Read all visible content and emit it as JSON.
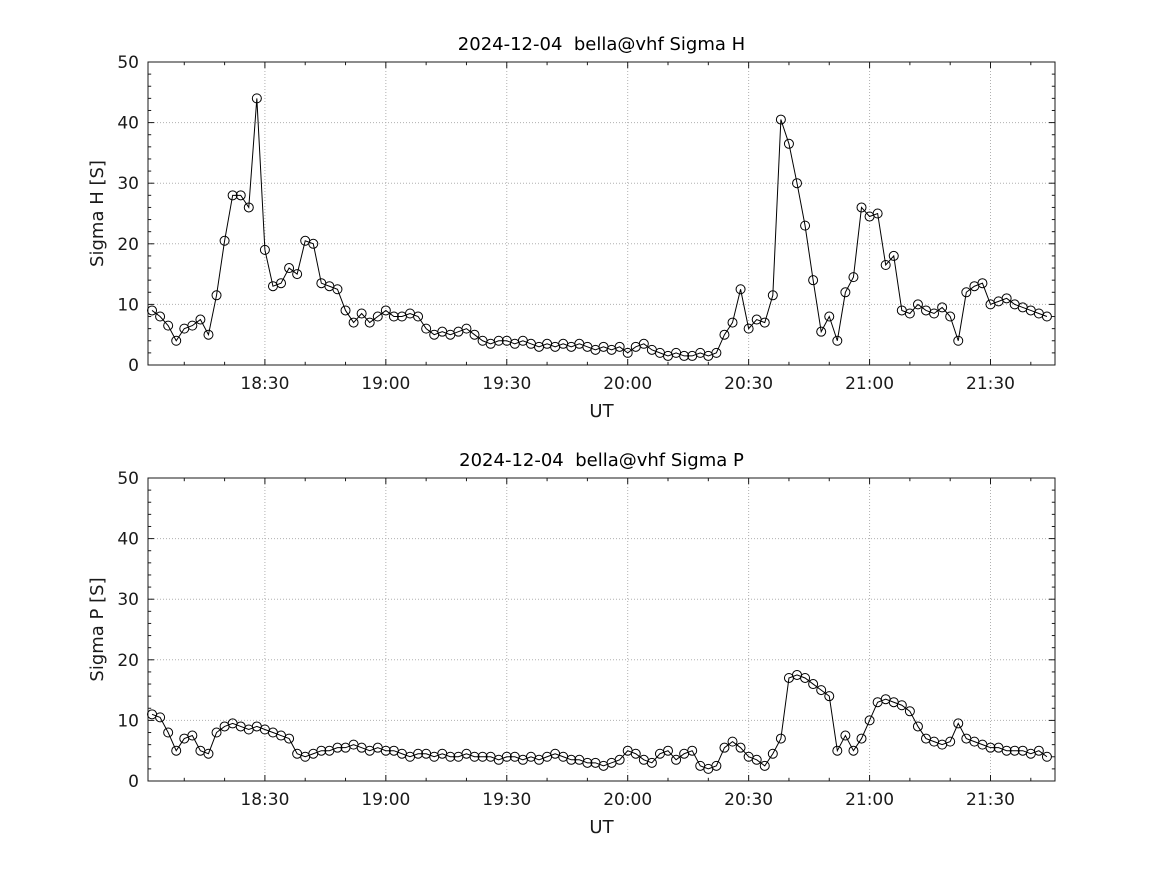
{
  "figure": {
    "background": "#ffffff",
    "axis_color": "#1a1a1a",
    "grid_color": "#b0b0b0",
    "line_color": "#000000",
    "marker_style": "open-circle"
  },
  "chart_data": [
    {
      "type": "line",
      "title": "2024-12-04  bella@vhf Sigma H",
      "xlabel": "UT",
      "ylabel": "Sigma H [S]",
      "grid": true,
      "legend": "none",
      "x_axis": {
        "unit": "minutes after 18:00 UT",
        "lim": [
          1,
          226
        ],
        "major_ticks": [
          {
            "minute": 30,
            "label": "18:30"
          },
          {
            "minute": 60,
            "label": "19:00"
          },
          {
            "minute": 90,
            "label": "19:30"
          },
          {
            "minute": 120,
            "label": "20:00"
          },
          {
            "minute": 150,
            "label": "20:30"
          },
          {
            "minute": 180,
            "label": "21:00"
          },
          {
            "minute": 210,
            "label": "21:30"
          }
        ],
        "minor_tick_step": 10
      },
      "y_axis": {
        "lim": [
          0,
          50
        ],
        "major_ticks": [
          0,
          10,
          20,
          30,
          40,
          50
        ],
        "minor_tick_step": 2
      },
      "series": {
        "name": "Sigma H",
        "x_start_minute": 2,
        "x_step_minutes": 2,
        "values": [
          9,
          8,
          6.5,
          4,
          6,
          6.5,
          7.5,
          5,
          11.5,
          20.5,
          28,
          28,
          26,
          44,
          19,
          13,
          13.5,
          16,
          15,
          20.5,
          20,
          13.5,
          13,
          12.5,
          9,
          7,
          8.5,
          7,
          8,
          9,
          8,
          8,
          8.5,
          8,
          6,
          5,
          5.5,
          5,
          5.5,
          6,
          5,
          4,
          3.5,
          4,
          4,
          3.5,
          4,
          3.5,
          3,
          3.5,
          3,
          3.5,
          3,
          3.5,
          3,
          2.5,
          3,
          2.5,
          3,
          2,
          3,
          3.5,
          2.5,
          2,
          1.5,
          2,
          1.5,
          1.5,
          2,
          1.5,
          2,
          5,
          7,
          12.5,
          6,
          7.5,
          7,
          11.5,
          40.5,
          36.5,
          30,
          23,
          14,
          5.5,
          8,
          4,
          12,
          14.5,
          26,
          24.5,
          25,
          16.5,
          18,
          9,
          8.5,
          10,
          9,
          8.5,
          9.5,
          8,
          4,
          12,
          13,
          13.5,
          10,
          10.5,
          11,
          10,
          9.5,
          9,
          8.5,
          8
        ]
      }
    },
    {
      "type": "line",
      "title": "2024-12-04  bella@vhf Sigma P",
      "xlabel": "UT",
      "ylabel": "Sigma P [S]",
      "grid": true,
      "legend": "none",
      "x_axis": {
        "unit": "minutes after 18:00 UT",
        "lim": [
          1,
          226
        ],
        "major_ticks": [
          {
            "minute": 30,
            "label": "18:30"
          },
          {
            "minute": 60,
            "label": "19:00"
          },
          {
            "minute": 90,
            "label": "19:30"
          },
          {
            "minute": 120,
            "label": "20:00"
          },
          {
            "minute": 150,
            "label": "20:30"
          },
          {
            "minute": 180,
            "label": "21:00"
          },
          {
            "minute": 210,
            "label": "21:30"
          }
        ],
        "minor_tick_step": 10
      },
      "y_axis": {
        "lim": [
          0,
          50
        ],
        "major_ticks": [
          0,
          10,
          20,
          30,
          40,
          50
        ],
        "minor_tick_step": 2
      },
      "series": {
        "name": "Sigma P",
        "x_start_minute": 2,
        "x_step_minutes": 2,
        "values": [
          11,
          10.5,
          8,
          5,
          7,
          7.5,
          5,
          4.5,
          8,
          9,
          9.5,
          9,
          8.5,
          9,
          8.5,
          8,
          7.5,
          7,
          4.5,
          4,
          4.5,
          5,
          5,
          5.5,
          5.5,
          6,
          5.5,
          5,
          5.5,
          5,
          5,
          4.5,
          4,
          4.5,
          4.5,
          4,
          4.5,
          4,
          4,
          4.5,
          4,
          4,
          4,
          3.5,
          4,
          4,
          3.5,
          4,
          3.5,
          4,
          4.5,
          4,
          3.5,
          3.5,
          3,
          3,
          2.5,
          3,
          3.5,
          5,
          4.5,
          3.5,
          3,
          4.5,
          5,
          3.5,
          4.5,
          5,
          2.5,
          2,
          2.5,
          5.5,
          6.5,
          5.5,
          4,
          3.5,
          2.5,
          4.5,
          7,
          17,
          17.5,
          17,
          16,
          15,
          14,
          5,
          7.5,
          5,
          7,
          10,
          13,
          13.5,
          13,
          12.5,
          11.5,
          9,
          7,
          6.5,
          6,
          6.5,
          9.5,
          7,
          6.5,
          6,
          5.5,
          5.5,
          5,
          5,
          5,
          4.5,
          5,
          4
        ]
      }
    }
  ]
}
